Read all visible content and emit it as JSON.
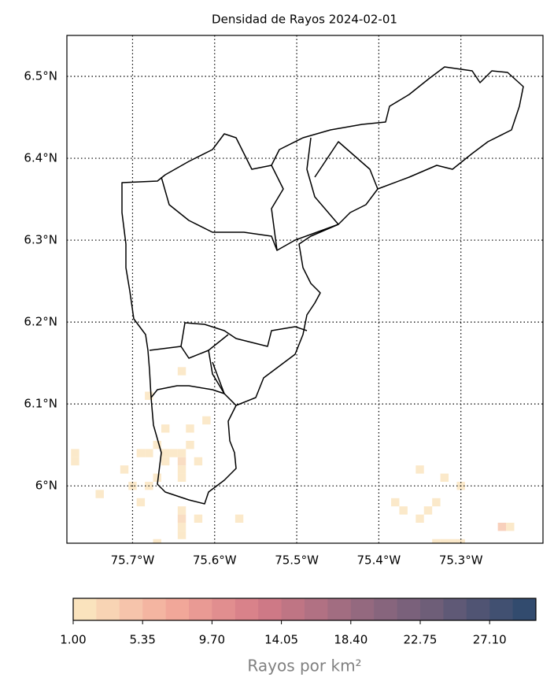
{
  "chart_data": {
    "type": "heatmap",
    "title": "Densidad de Rayos 2024-02-01",
    "xlim": [
      -75.78,
      -75.2
    ],
    "ylim": [
      5.93,
      6.55
    ],
    "xticks": [
      {
        "value": -75.7,
        "label": "75.7°W"
      },
      {
        "value": -75.6,
        "label": "75.6°W"
      },
      {
        "value": -75.5,
        "label": "75.5°W"
      },
      {
        "value": -75.4,
        "label": "75.4°W"
      },
      {
        "value": -75.3,
        "label": "75.3°W"
      }
    ],
    "yticks": [
      {
        "value": 6.0,
        "label": "6°N"
      },
      {
        "value": 6.1,
        "label": "6.1°N"
      },
      {
        "value": 6.2,
        "label": "6.2°N"
      },
      {
        "value": 6.3,
        "label": "6.3°N"
      },
      {
        "value": 6.4,
        "label": "6.4°N"
      },
      {
        "value": 6.5,
        "label": "6.5°N"
      }
    ],
    "grid": true,
    "cell_size": 0.01,
    "x": [
      -75.77,
      -75.77,
      -75.74,
      -75.71,
      -75.69,
      -75.68,
      -75.7,
      -75.69,
      -75.68,
      -75.68,
      -75.67,
      -75.67,
      -75.67,
      -75.66,
      -75.66,
      -75.66,
      -75.65,
      -75.64,
      -75.64,
      -75.64,
      -75.64,
      -75.64,
      -75.63,
      -75.63,
      -75.62,
      -75.61,
      -75.64,
      -75.64,
      -75.64,
      -75.64,
      -75.62,
      -75.57,
      -75.38,
      -75.37,
      -75.35,
      -75.35,
      -75.34,
      -75.33,
      -75.32,
      -75.3,
      -75.33,
      -75.32,
      -75.31,
      -75.3,
      -75.25,
      -75.24
    ],
    "y": [
      6.04,
      6.03,
      5.99,
      6.02,
      6.04,
      6.04,
      6.0,
      5.98,
      6.0,
      6.11,
      6.01,
      6.05,
      5.93,
      6.07,
      6.04,
      6.03,
      6.04,
      6.04,
      6.14,
      6.03,
      6.02,
      6.01,
      6.07,
      6.05,
      6.03,
      6.08,
      5.97,
      5.96,
      5.95,
      5.94,
      5.96,
      5.96,
      5.98,
      5.97,
      6.02,
      5.96,
      5.97,
      5.98,
      6.01,
      6.0,
      5.93,
      5.93,
      5.93,
      5.93,
      5.95,
      5.95
    ],
    "values": [
      1,
      1,
      1,
      1,
      1,
      1,
      1,
      1,
      1,
      1,
      1,
      1,
      1,
      1,
      1,
      1,
      1,
      1,
      2,
      3,
      1,
      1,
      1,
      1,
      1,
      1,
      1,
      3,
      1,
      1,
      1,
      1,
      1,
      1,
      1,
      1,
      1,
      1,
      1,
      1,
      1,
      2,
      1,
      1,
      5,
      1
    ],
    "clim": [
      1,
      30
    ],
    "color_bins": 20,
    "colormap": [
      "#fae3bd",
      "#f3a99a",
      "#d47b87",
      "#9c6b80",
      "#6b5d78",
      "#324b6e"
    ],
    "colorbar_ticks": [
      {
        "value": 1,
        "label": "1.00"
      },
      {
        "value": 5.35,
        "label": "5.35"
      },
      {
        "value": 9.7,
        "label": "9.70"
      },
      {
        "value": 14.05,
        "label": "14.05"
      },
      {
        "value": 18.4,
        "label": "18.40"
      },
      {
        "value": 22.75,
        "label": "22.75"
      },
      {
        "value": 27.1,
        "label": "27.10"
      }
    ],
    "colorbar_label": "Rayos por km²"
  }
}
